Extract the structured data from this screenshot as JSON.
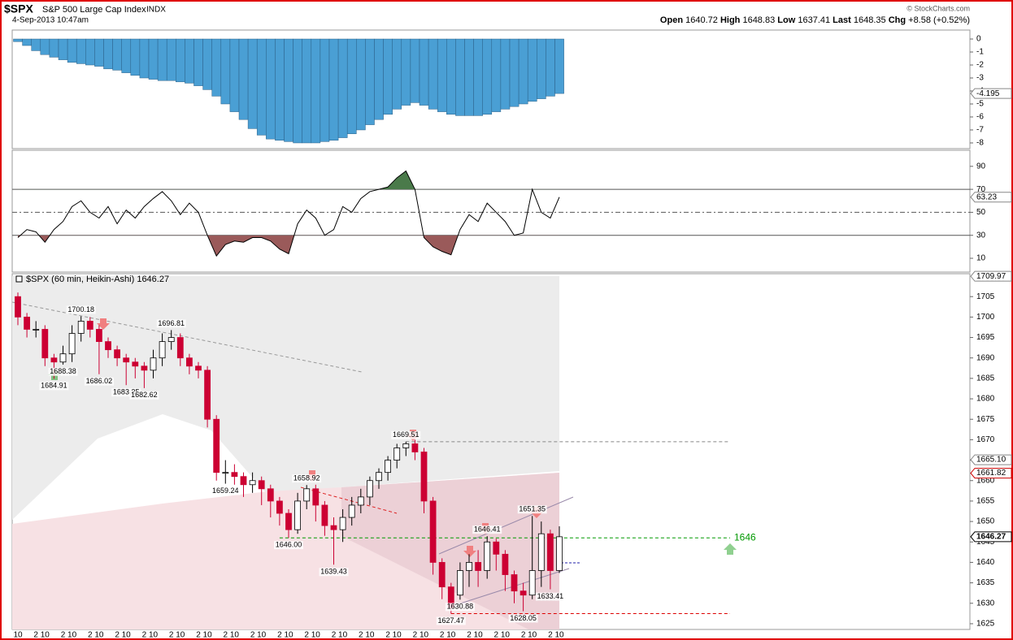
{
  "header": {
    "symbol": "$SPX",
    "name": "S&P 500 Large Cap Index",
    "exchange": "INDX",
    "date": "4-Sep-2013 10:47am",
    "copyright": "© StockCharts.com",
    "quote": {
      "open_label": "Open",
      "open": 1640.72,
      "high_label": "High",
      "high": 1648.83,
      "low_label": "Low",
      "low": 1637.41,
      "last_label": "Last",
      "last": 1648.35,
      "chg_label": "Chg",
      "chg": {
        "value": 8.58,
        "label": "+8.58"
      },
      "chg_pct": {
        "value": 0.52,
        "label": "(+0.52%)"
      }
    }
  },
  "chart_data": [
    {
      "type": "bar",
      "color": "#4a9fd4",
      "values": [
        -0.2,
        -0.5,
        -0.9,
        -1.2,
        -1.4,
        -1.6,
        -1.8,
        -1.9,
        -2.0,
        -2.1,
        -2.3,
        -2.4,
        -2.6,
        -2.8,
        -3.0,
        -3.1,
        -3.2,
        -3.2,
        -3.3,
        -3.4,
        -3.6,
        -3.9,
        -4.4,
        -5.0,
        -5.6,
        -6.2,
        -6.9,
        -7.4,
        -7.7,
        -7.8,
        -7.9,
        -8.0,
        -8.0,
        -8.0,
        -7.9,
        -7.8,
        -7.6,
        -7.3,
        -7.0,
        -6.6,
        -6.2,
        -5.8,
        -5.4,
        -5.1,
        -4.9,
        -5.1,
        -5.4,
        -5.6,
        -5.8,
        -5.9,
        -5.9,
        -5.9,
        -5.8,
        -5.6,
        -5.4,
        -5.2,
        -5.0,
        -4.8,
        -4.6,
        -4.4,
        -4.195
      ],
      "ylim": [
        -8.44,
        0.69
      ],
      "yticks": [
        0,
        -1,
        -2,
        -3,
        -4,
        -5,
        -6,
        -7,
        -8
      ],
      "last_tag": -4.195
    },
    {
      "type": "line",
      "color": "#000000",
      "values": [
        28,
        35,
        33,
        24,
        35,
        42,
        55,
        60,
        50,
        45,
        55,
        40,
        52,
        45,
        55,
        62,
        68,
        60,
        48,
        58,
        50,
        30,
        12,
        22,
        25,
        24,
        28,
        28,
        25,
        18,
        14,
        40,
        52,
        45,
        30,
        35,
        55,
        50,
        62,
        68,
        70,
        72,
        80,
        86,
        70,
        28,
        20,
        16,
        13,
        35,
        48,
        42,
        58,
        50,
        42,
        30,
        32,
        70,
        50,
        45,
        63.23
      ],
      "ylim": [
        -2,
        104
      ],
      "yticks": [
        10,
        30,
        50,
        70,
        90
      ],
      "overbought": 70,
      "midline": 50,
      "oversold": 30,
      "overbought_color": "#4a7a4a",
      "oversold_color": "#9a5a5a",
      "last_tag": 63.23
    },
    {
      "type": "candlestick",
      "title": "$SPX (60 min, Heikin-Ashi) 1646.27",
      "categories": [
        "10",
        null,
        "2",
        "10",
        null,
        "2",
        "10",
        null,
        "2",
        "10",
        null,
        "2",
        "10",
        null,
        "2",
        "10",
        null,
        "2",
        "10",
        null,
        "2",
        "10",
        null,
        "2",
        "10",
        null,
        "2",
        "10",
        null,
        "2",
        "10",
        null,
        "2",
        "10",
        null,
        "2",
        "10",
        null,
        "2",
        "10",
        null,
        "2",
        "10",
        null,
        "2",
        "10",
        null,
        "2",
        "10",
        null,
        "2",
        "10",
        null,
        "2",
        "10",
        null,
        "2",
        "10",
        null,
        "2",
        "10"
      ],
      "open": [
        1705,
        1700,
        1697,
        1697,
        1690,
        1689,
        1691,
        1696,
        1699,
        1697,
        1694,
        1692,
        1690,
        1689,
        1688,
        1687,
        1690,
        1694,
        1695,
        1690,
        1688,
        1687,
        1675,
        1662,
        1662,
        1661,
        1659,
        1660,
        1658,
        1655,
        1652,
        1648,
        1655,
        1658,
        1654,
        1649,
        1648,
        1651,
        1654,
        1656,
        1660,
        1662,
        1665,
        1668,
        1669,
        1667,
        1655,
        1640,
        1634,
        1632,
        1638,
        1640,
        1638,
        1645,
        1642,
        1637,
        1633,
        1632,
        1638,
        1647,
        1638
      ],
      "high": [
        1706,
        1701,
        1699,
        1698,
        1691,
        1693,
        1698,
        1700.18,
        1700,
        1698,
        1695,
        1693,
        1691,
        1690,
        1689,
        1692,
        1696,
        1696.81,
        1696,
        1691,
        1689,
        1688,
        1676,
        1665,
        1664,
        1662,
        1662,
        1661,
        1659,
        1656,
        1653,
        1657,
        1658.92,
        1659,
        1655,
        1651,
        1653,
        1656,
        1658,
        1661,
        1663,
        1666,
        1669,
        1669.51,
        1670,
        1668,
        1656,
        1641,
        1635,
        1640,
        1642,
        1643,
        1646.41,
        1645.8,
        1643,
        1638,
        1635,
        1651.35,
        1650,
        1648,
        1648.83
      ],
      "low": [
        1698,
        1695,
        1695,
        1688,
        1684.91,
        1688.38,
        1689,
        1694,
        1695,
        1686.02,
        1690,
        1688,
        1683.35,
        1685,
        1682.62,
        1685,
        1688,
        1692,
        1688,
        1686,
        1685,
        1673,
        1660,
        1659.24,
        1659,
        1656,
        1657,
        1654,
        1651,
        1649,
        1646,
        1647,
        1653,
        1650,
        1646.5,
        1639.43,
        1645,
        1649,
        1652,
        1654,
        1658,
        1660,
        1663,
        1666,
        1665,
        1652,
        1637,
        1631,
        1627.47,
        1630.88,
        1634,
        1634,
        1636,
        1638,
        1633,
        1630,
        1628.05,
        1631,
        1634,
        1633.41,
        1637.41
      ],
      "close": [
        1700,
        1697,
        1697,
        1690,
        1689,
        1691,
        1696,
        1699,
        1697,
        1694,
        1692,
        1690,
        1689,
        1688,
        1687,
        1690,
        1694,
        1695,
        1690,
        1688,
        1687,
        1675,
        1662,
        1662,
        1661,
        1659,
        1660,
        1658,
        1655,
        1652,
        1648,
        1655,
        1658,
        1654,
        1649,
        1648,
        1651,
        1654,
        1656,
        1660,
        1662,
        1665,
        1668,
        1669,
        1667,
        1655,
        1640,
        1634,
        1629,
        1638,
        1640,
        1638,
        1645,
        1642,
        1637,
        1633,
        1632,
        1638,
        1647,
        1638,
        1646.27
      ],
      "up_color": "#ffffff",
      "down_color": "#cc0033",
      "ylim": [
        1623.6,
        1710.6
      ],
      "yticks": [
        1625,
        1630,
        1635,
        1640,
        1645,
        1650,
        1655,
        1660,
        1665,
        1670,
        1675,
        1680,
        1685,
        1690,
        1695,
        1700,
        1705
      ],
      "annotations": [
        1700.18,
        1684.91,
        1688.38,
        1686.02,
        1683.35,
        1682.62,
        1696.81,
        1659.24,
        1658.92,
        {
          "value": 1646,
          "label": "1646.00"
        },
        1639.43,
        1669.51,
        1630.88,
        1627.47,
        1646.41,
        1651.35,
        1628.05,
        1633.41
      ],
      "price_tags": [
        1709.97,
        {
          "value": 1665.1,
          "label": "1665.10"
        },
        1661.82,
        1646.27
      ],
      "price_tag_colors": [
        "#888888",
        "#888888",
        "#cc0000",
        "#000000"
      ],
      "support": 1646,
      "support_color": "#009900",
      "levels": [
        {
          "value": 1669.51,
          "color": "#888888"
        },
        {
          "value": 1627.47,
          "color": "#dd0000"
        }
      ]
    }
  ]
}
